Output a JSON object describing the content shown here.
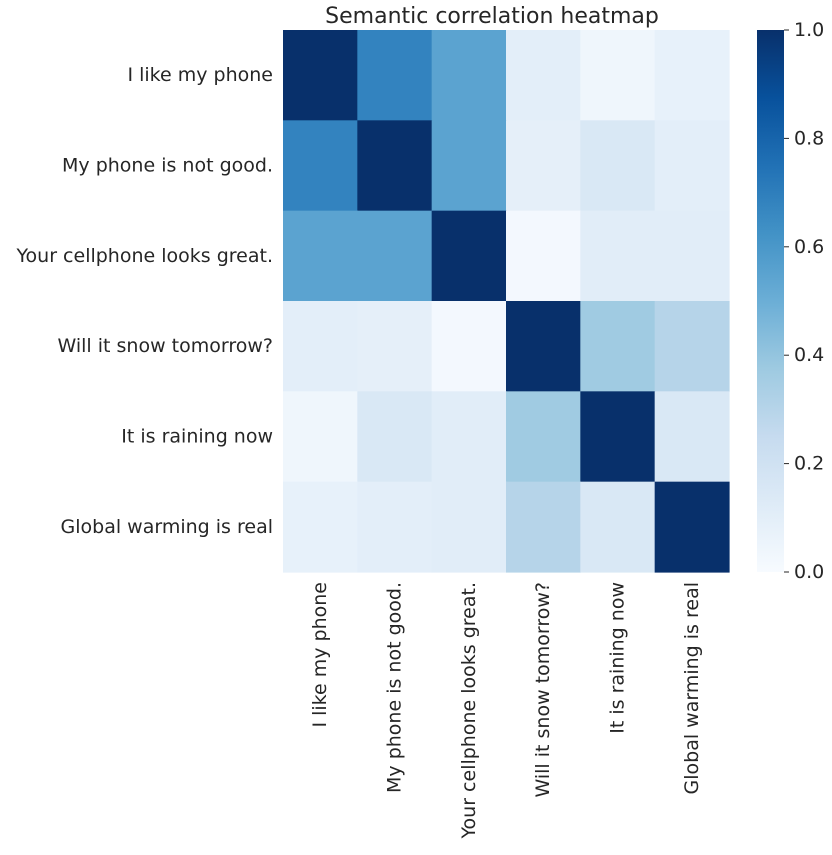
{
  "chart_data": {
    "type": "heatmap",
    "title": "Semantic correlation heatmap",
    "xlabel": "",
    "ylabel": "",
    "row_labels": [
      "I like my phone",
      "My phone is not good.",
      "Your cellphone looks great.",
      "Will it snow tomorrow?",
      "It is raining now",
      "Global warming is real"
    ],
    "col_labels": [
      "I like my phone",
      "My phone is not good.",
      "Your cellphone looks great.",
      "Will it snow tomorrow?",
      "It is raining now",
      "Global warming is real"
    ],
    "values": [
      [
        1.0,
        0.68,
        0.55,
        0.1,
        0.04,
        0.08
      ],
      [
        0.68,
        1.0,
        0.55,
        0.09,
        0.15,
        0.1
      ],
      [
        0.55,
        0.55,
        1.0,
        0.02,
        0.11,
        0.11
      ],
      [
        0.1,
        0.09,
        0.02,
        1.0,
        0.37,
        0.3
      ],
      [
        0.04,
        0.15,
        0.11,
        0.37,
        1.0,
        0.15
      ],
      [
        0.08,
        0.1,
        0.11,
        0.3,
        0.15,
        1.0
      ]
    ],
    "colorbar": {
      "min": 0.0,
      "max": 1.0,
      "ticks": [
        "0.0",
        "0.2",
        "0.4",
        "0.6",
        "0.8",
        "1.0"
      ],
      "colormap": "Blues",
      "colors": [
        "#f7fbff",
        "#deebf7",
        "#c6dbef",
        "#9ecae1",
        "#6baed6",
        "#4292c6",
        "#2171b5",
        "#08519c",
        "#08306b"
      ]
    },
    "grid": false,
    "legend": "colorbar-right"
  }
}
